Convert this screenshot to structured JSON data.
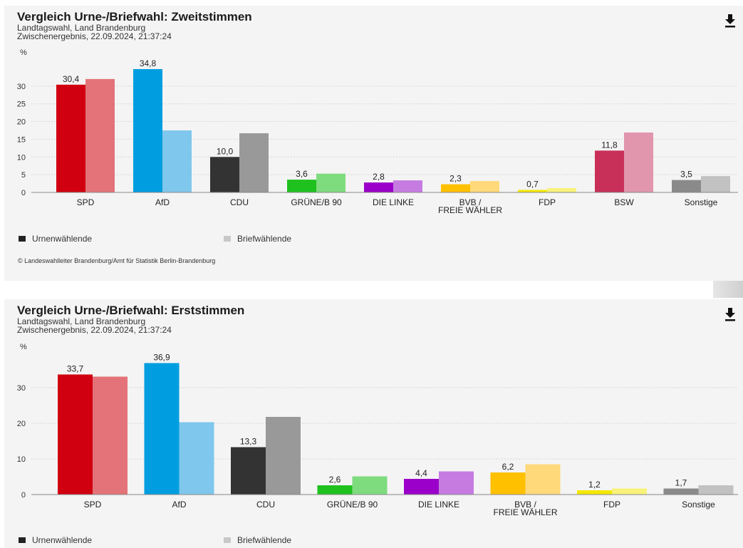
{
  "panel1": {
    "title": "Vergleich Urne-/Briefwahl: Zweitstimmen",
    "subtitle1": "Landtagswahl, Land Brandenburg",
    "subtitle2": "Zwischenergebnis, 22.09.2024, 21:37:24",
    "download_icon": "download-icon",
    "legend": {
      "urne": "Urnenwählende",
      "brief": "Briefwählende"
    },
    "source": "© Landeswahlleiter Brandenburg/Amt für Statistik Berlin-Brandenburg"
  },
  "panel2": {
    "title": "Vergleich Urne-/Briefwahl: Erststimmen",
    "subtitle1": "Landtagswahl, Land Brandenburg",
    "subtitle2": "Zwischenergebnis, 22.09.2024, 21:37:24",
    "download_icon": "download-icon",
    "legend": {
      "urne": "Urnenwählende",
      "brief": "Briefwählende"
    }
  },
  "chart_data": [
    {
      "type": "bar",
      "ylabel": "%",
      "ylim": [
        0,
        36
      ],
      "yticks": [
        0,
        5,
        10,
        15,
        20,
        25,
        30
      ],
      "grid": true,
      "legend_position": "bottom-left",
      "categories": [
        "SPD",
        "AfD",
        "CDU",
        "GRÜNE/B 90",
        "DIE LINKE",
        "BVB / FREIE WÄHLER",
        "FDP",
        "BSW",
        "Sonstige"
      ],
      "series": [
        {
          "name": "Urnenwählende",
          "values": [
            30.4,
            34.8,
            10.0,
            3.6,
            2.8,
            2.3,
            0.7,
            11.8,
            3.5
          ]
        },
        {
          "name": "Briefwählende",
          "values": [
            32.0,
            17.5,
            16.7,
            5.3,
            3.4,
            3.2,
            1.2,
            16.9,
            4.6
          ]
        }
      ],
      "data_labels": [
        "30,4",
        "34,8",
        "10,0",
        "3,6",
        "2,8",
        "2,3",
        "0,7",
        "11,8",
        "3,5"
      ],
      "colors_urne": [
        "#d10010",
        "#009ee0",
        "#333333",
        "#1fc11f",
        "#9a00c9",
        "#ffc000",
        "#f5e800",
        "#c8305a",
        "#8a8a8a"
      ],
      "colors_brief": [
        "#e37378",
        "#7fc7ec",
        "#999999",
        "#7edb7e",
        "#c67be1",
        "#ffd97a",
        "#f9f27a",
        "#e196ae",
        "#c2c2c2"
      ]
    },
    {
      "type": "bar",
      "ylabel": "%",
      "ylim": [
        0,
        38
      ],
      "yticks": [
        0,
        10,
        20,
        30
      ],
      "grid": true,
      "legend_position": "bottom-left",
      "categories": [
        "SPD",
        "AfD",
        "CDU",
        "GRÜNE/B 90",
        "DIE LINKE",
        "BVB / FREIE WÄHLER",
        "FDP",
        "Sonstige"
      ],
      "series": [
        {
          "name": "Urnenwählende",
          "values": [
            33.7,
            36.9,
            13.3,
            2.6,
            4.4,
            6.2,
            1.2,
            1.7
          ]
        },
        {
          "name": "Briefwählende",
          "values": [
            33.1,
            20.3,
            21.8,
            5.1,
            6.5,
            8.5,
            1.7,
            2.6
          ]
        }
      ],
      "data_labels": [
        "33,7",
        "36,9",
        "13,3",
        "2,6",
        "4,4",
        "6,2",
        "1,2",
        "1,7"
      ],
      "colors_urne": [
        "#d10010",
        "#009ee0",
        "#333333",
        "#1fc11f",
        "#9a00c9",
        "#ffc000",
        "#f5e800",
        "#8a8a8a"
      ],
      "colors_brief": [
        "#e37378",
        "#7fc7ec",
        "#999999",
        "#7edb7e",
        "#c67be1",
        "#ffd97a",
        "#f9f27a",
        "#c2c2c2"
      ]
    }
  ]
}
